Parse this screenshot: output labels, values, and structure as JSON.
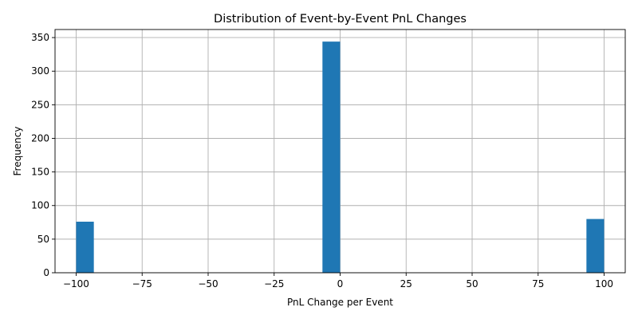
{
  "chart_data": {
    "type": "bar",
    "title": "Distribution of Event-by-Event PnL Changes",
    "xlabel": "PnL Change per Event",
    "ylabel": "Frequency",
    "xlim": [
      -108,
      108
    ],
    "ylim": [
      0,
      362
    ],
    "xticks": [
      -100,
      -75,
      -50,
      -25,
      0,
      25,
      50,
      75,
      100
    ],
    "xtick_labels": [
      "−100",
      "−75",
      "−50",
      "−25",
      "0",
      "25",
      "50",
      "75",
      "100"
    ],
    "yticks": [
      0,
      50,
      100,
      150,
      200,
      250,
      300,
      350
    ],
    "ytick_labels": [
      "0",
      "50",
      "100",
      "150",
      "200",
      "250",
      "300",
      "350"
    ],
    "grid": true,
    "bar_color": "#1f77b4",
    "bins": [
      {
        "x0": -100.0,
        "x1": -93.3,
        "value": 76
      },
      {
        "x0": -6.7,
        "x1": 0.0,
        "value": 344
      },
      {
        "x0": 93.3,
        "x1": 100.0,
        "value": 80
      }
    ]
  }
}
